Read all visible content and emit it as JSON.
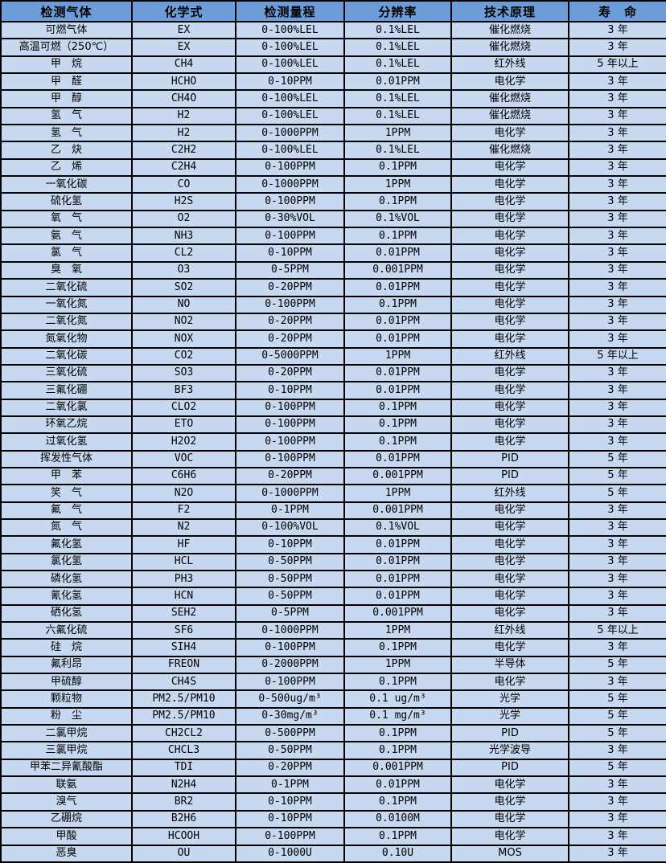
{
  "colors": {
    "header_bg": "#6d9dd8",
    "row_bg": "#c6d9f1",
    "border": "#000000",
    "text": "#000000"
  },
  "table": {
    "columns": [
      {
        "key": "gas",
        "label": "检测气体"
      },
      {
        "key": "formula",
        "label": "化学式"
      },
      {
        "key": "range",
        "label": "检测量程"
      },
      {
        "key": "resolution",
        "label": "分辨率"
      },
      {
        "key": "principle",
        "label": "技术原理"
      },
      {
        "key": "life",
        "label": "寿　命"
      }
    ],
    "rows": [
      {
        "gas": "可燃气体",
        "formula": "EX",
        "range": "0-100%LEL",
        "resolution": "0.1%LEL",
        "principle": "催化燃烧",
        "life": "3 年"
      },
      {
        "gas": "高温可燃（250℃）",
        "formula": "EX",
        "range": "0-100%LEL",
        "resolution": "0.1%LEL",
        "principle": "催化燃烧",
        "life": "3 年"
      },
      {
        "gas": "甲　烷",
        "formula": "CH4",
        "range": "0-100%LEL",
        "resolution": "0.1%LEL",
        "principle": "红外线",
        "life": "5 年以上"
      },
      {
        "gas": "甲　醛",
        "formula": "HCHO",
        "range": "0-10PPM",
        "resolution": "0.01PPM",
        "principle": "电化学",
        "life": "3 年"
      },
      {
        "gas": "甲　醇",
        "formula": "CH4O",
        "range": "0-100%LEL",
        "resolution": "0.1%LEL",
        "principle": "催化燃烧",
        "life": "3 年"
      },
      {
        "gas": "氢　气",
        "formula": "H2",
        "range": "0-100%LEL",
        "resolution": "0.1%LEL",
        "principle": "催化燃烧",
        "life": "3 年"
      },
      {
        "gas": "氢　气",
        "formula": "H2",
        "range": "0-1000PPM",
        "resolution": "1PPM",
        "principle": "电化学",
        "life": "3 年"
      },
      {
        "gas": "乙　炔",
        "formula": "C2H2",
        "range": "0-100%LEL",
        "resolution": "0.1%LEL",
        "principle": "催化燃烧",
        "life": "3 年"
      },
      {
        "gas": "乙　烯",
        "formula": "C2H4",
        "range": "0-100PPM",
        "resolution": "0.1PPM",
        "principle": "电化学",
        "life": "3 年"
      },
      {
        "gas": "一氧化碳",
        "formula": "CO",
        "range": "0-1000PPM",
        "resolution": "1PPM",
        "principle": "电化学",
        "life": "3 年"
      },
      {
        "gas": "硫化氢",
        "formula": "H2S",
        "range": "0-100PPM",
        "resolution": "0.1PPM",
        "principle": "电化学",
        "life": "3 年"
      },
      {
        "gas": "氧　气",
        "formula": "O2",
        "range": "0-30%VOL",
        "resolution": "0.1%VOL",
        "principle": "电化学",
        "life": "3 年"
      },
      {
        "gas": "氨　气",
        "formula": "NH3",
        "range": "0-100PPM",
        "resolution": "0.1PPM",
        "principle": "电化学",
        "life": "3 年"
      },
      {
        "gas": "氯　气",
        "formula": "CL2",
        "range": "0-10PPM",
        "resolution": "0.01PPM",
        "principle": "电化学",
        "life": "3 年"
      },
      {
        "gas": "臭　氧",
        "formula": "O3",
        "range": "0-5PPM",
        "resolution": "0.001PPM",
        "principle": "电化学",
        "life": "3 年"
      },
      {
        "gas": "二氧化硫",
        "formula": "SO2",
        "range": "0-20PPM",
        "resolution": "0.01PPM",
        "principle": "电化学",
        "life": "3 年"
      },
      {
        "gas": "一氧化氮",
        "formula": "NO",
        "range": "0-100PPM",
        "resolution": "0.1PPM",
        "principle": "电化学",
        "life": "3 年"
      },
      {
        "gas": "二氧化氮",
        "formula": "NO2",
        "range": "0-20PPM",
        "resolution": "0.01PPM",
        "principle": "电化学",
        "life": "3 年"
      },
      {
        "gas": "氮氧化物",
        "formula": "NOX",
        "range": "0-20PPM",
        "resolution": "0.01PPM",
        "principle": "电化学",
        "life": "3 年"
      },
      {
        "gas": "二氧化碳",
        "formula": "CO2",
        "range": "0-5000PPM",
        "resolution": "1PPM",
        "principle": "红外线",
        "life": "5 年以上"
      },
      {
        "gas": "三氧化硫",
        "formula": "SO3",
        "range": "0-20PPM",
        "resolution": "0.01PPM",
        "principle": "电化学",
        "life": "3 年"
      },
      {
        "gas": "三氟化硼",
        "formula": "BF3",
        "range": "0-10PPM",
        "resolution": "0.01PPM",
        "principle": "电化学",
        "life": "3 年"
      },
      {
        "gas": "二氧化氯",
        "formula": "CLO2",
        "range": "0-100PPM",
        "resolution": "0.1PPM",
        "principle": "电化学",
        "life": "3 年"
      },
      {
        "gas": "环氧乙烷",
        "formula": "ETO",
        "range": "0-100PPM",
        "resolution": "0.1PPM",
        "principle": "电化学",
        "life": "3 年"
      },
      {
        "gas": "过氧化氢",
        "formula": "H2O2",
        "range": "0-100PPM",
        "resolution": "0.1PPM",
        "principle": "电化学",
        "life": "3 年"
      },
      {
        "gas": "挥发性气体",
        "formula": "VOC",
        "range": "0-100PPM",
        "resolution": "0.01PPM",
        "principle": "PID",
        "life": "5 年"
      },
      {
        "gas": "甲　苯",
        "formula": "C6H6",
        "range": "0-20PPM",
        "resolution": "0.001PPM",
        "principle": "PID",
        "life": "5 年"
      },
      {
        "gas": "笑　气",
        "formula": "N2O",
        "range": "0-1000PPM",
        "resolution": "1PPM",
        "principle": "红外线",
        "life": "5 年"
      },
      {
        "gas": "氟　气",
        "formula": "F2",
        "range": "0-1PPM",
        "resolution": "0.001PPM",
        "principle": "电化学",
        "life": "3 年"
      },
      {
        "gas": "氮　气",
        "formula": "N2",
        "range": "0-100%VOL",
        "resolution": "0.1%VOL",
        "principle": "电化学",
        "life": "3 年"
      },
      {
        "gas": "氟化氢",
        "formula": "HF",
        "range": "0-10PPM",
        "resolution": "0.01PPM",
        "principle": "电化学",
        "life": "3 年"
      },
      {
        "gas": "氯化氢",
        "formula": "HCL",
        "range": "0-50PPM",
        "resolution": "0.01PPM",
        "principle": "电化学",
        "life": "3 年"
      },
      {
        "gas": "磷化氢",
        "formula": "PH3",
        "range": "0-50PPM",
        "resolution": "0.01PPM",
        "principle": "电化学",
        "life": "3 年"
      },
      {
        "gas": "氰化氢",
        "formula": "HCN",
        "range": "0-50PPM",
        "resolution": "0.01PPM",
        "principle": "电化学",
        "life": "3 年"
      },
      {
        "gas": "硒化氢",
        "formula": "SEH2",
        "range": "0-5PPM",
        "resolution": "0.001PPM",
        "principle": "电化学",
        "life": "3 年"
      },
      {
        "gas": "六氟化硫",
        "formula": "SF6",
        "range": "0-1000PPM",
        "resolution": "1PPM",
        "principle": "红外线",
        "life": "5 年以上"
      },
      {
        "gas": "硅　烷",
        "formula": "SIH4",
        "range": "0-100PPM",
        "resolution": "0.1PPM",
        "principle": "电化学",
        "life": "3 年"
      },
      {
        "gas": "氟利昂",
        "formula": "FREON",
        "range": "0-2000PPM",
        "resolution": "1PPM",
        "principle": "半导体",
        "life": "5 年"
      },
      {
        "gas": "甲硫醇",
        "formula": "CH4S",
        "range": "0-100PPM",
        "resolution": "0.1PPM",
        "principle": "电化学",
        "life": "3 年"
      },
      {
        "gas": "颗粒物",
        "formula": "PM2.5/PM10",
        "range": "0-500ug/m³",
        "resolution": "0.1 ug/m³",
        "principle": "光学",
        "life": "5 年"
      },
      {
        "gas": "粉　尘",
        "formula": "PM2.5/PM10",
        "range": "0-30mg/m³",
        "resolution": "0.1 mg/m³",
        "principle": "光学",
        "life": "5 年"
      },
      {
        "gas": "二氯甲烷",
        "formula": "CH2CL2",
        "range": "0-500PPM",
        "resolution": "0.1PPM",
        "principle": "PID",
        "life": "5 年"
      },
      {
        "gas": "三氯甲烷",
        "formula": "CHCL3",
        "range": "0-50PPM",
        "resolution": "0.1PPM",
        "principle": "光学波导",
        "life": "3 年"
      },
      {
        "gas": "甲苯二异氰酸酯",
        "formula": "TDI",
        "range": "0-20PPM",
        "resolution": "0.001PPM",
        "principle": "PID",
        "life": "5 年"
      },
      {
        "gas": "联氨",
        "formula": "N2H4",
        "range": "0-1PPM",
        "resolution": "0.01PPM",
        "principle": "电化学",
        "life": "3 年"
      },
      {
        "gas": "溴气",
        "formula": "BR2",
        "range": "0-10PPM",
        "resolution": "0.1PPM",
        "principle": "电化学",
        "life": "3 年"
      },
      {
        "gas": "乙硼烷",
        "formula": "B2H6",
        "range": "0-10PPM",
        "resolution": "0.0100M",
        "principle": "电化学",
        "life": "3 年"
      },
      {
        "gas": "甲酸",
        "formula": "HCOOH",
        "range": "0-100PPM",
        "resolution": "0.1PPM",
        "principle": "电化学",
        "life": "3 年"
      },
      {
        "gas": "恶臭",
        "formula": "OU",
        "range": "0-1000U",
        "resolution": "0.10U",
        "principle": "MOS",
        "life": "3 年"
      }
    ]
  }
}
